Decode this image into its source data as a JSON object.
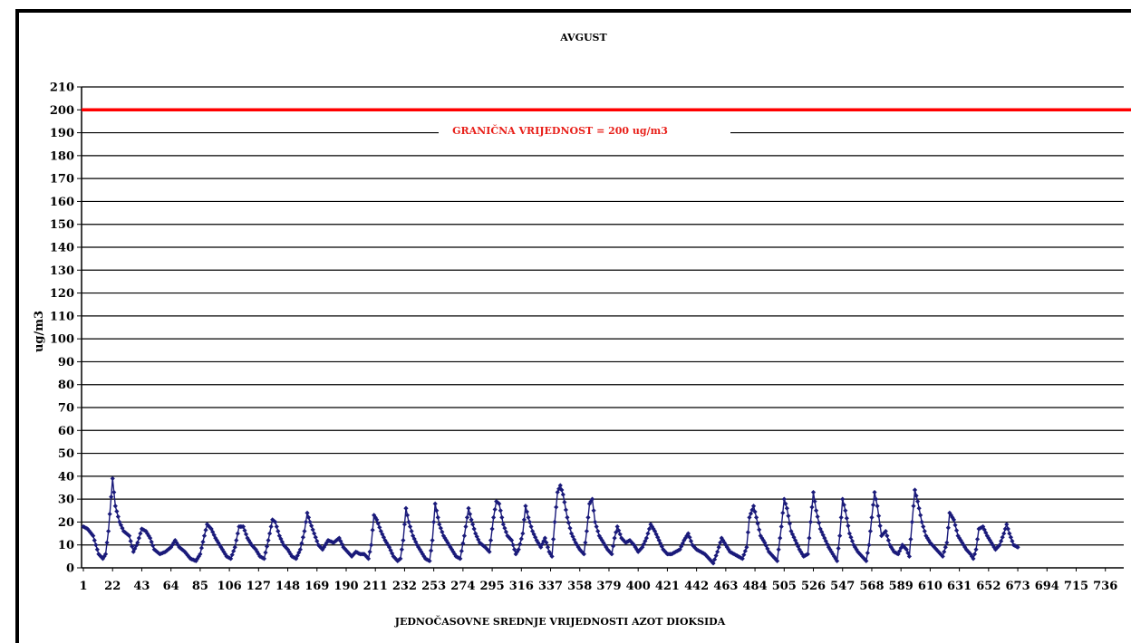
{
  "chart_data": {
    "type": "line",
    "title": "AVGUST",
    "xlabel": "JEDNOČASOVNE SREDNJE VRIJEDNOSTI AZOT DIOKSIDA",
    "ylabel": "ug/m3",
    "ylim": [
      0,
      210
    ],
    "y_ticks": [
      "0",
      "10",
      "20",
      "30",
      "40",
      "50",
      "60",
      "70",
      "80",
      "90",
      "100",
      "110",
      "120",
      "130",
      "140",
      "150",
      "160",
      "170",
      "180",
      "190",
      "200",
      "210"
    ],
    "x_ticks": [
      "1",
      "22",
      "43",
      "64",
      "85",
      "106",
      "127",
      "148",
      "169",
      "190",
      "211",
      "232",
      "253",
      "274",
      "295",
      "316",
      "337",
      "358",
      "379",
      "400",
      "421",
      "442",
      "463",
      "484",
      "505",
      "526",
      "547",
      "568",
      "589",
      "610",
      "631",
      "652",
      "673",
      "694",
      "715",
      "736"
    ],
    "xlim": [
      1,
      744
    ],
    "grid": true,
    "limit_line": {
      "value": 200,
      "label": "GRANIČNA VRIJEDNOST = 200 ug/m3",
      "color": "#ff0000"
    },
    "series": [
      {
        "name": "",
        "color": "#1a1a7a",
        "keypoints": [
          [
            1,
            18
          ],
          [
            4,
            17
          ],
          [
            8,
            14
          ],
          [
            12,
            6
          ],
          [
            15,
            4
          ],
          [
            17,
            6
          ],
          [
            19,
            16
          ],
          [
            21,
            31
          ],
          [
            22,
            39
          ],
          [
            24,
            27
          ],
          [
            27,
            20
          ],
          [
            30,
            16
          ],
          [
            34,
            14
          ],
          [
            37,
            7
          ],
          [
            40,
            11
          ],
          [
            43,
            17
          ],
          [
            46,
            16
          ],
          [
            49,
            13
          ],
          [
            52,
            8
          ],
          [
            56,
            6
          ],
          [
            60,
            7
          ],
          [
            64,
            9
          ],
          [
            67,
            12
          ],
          [
            70,
            9
          ],
          [
            74,
            7
          ],
          [
            78,
            4
          ],
          [
            82,
            3
          ],
          [
            85,
            6
          ],
          [
            88,
            14
          ],
          [
            90,
            19
          ],
          [
            93,
            17
          ],
          [
            96,
            13
          ],
          [
            100,
            9
          ],
          [
            104,
            5
          ],
          [
            107,
            4
          ],
          [
            110,
            9
          ],
          [
            113,
            18
          ],
          [
            116,
            18
          ],
          [
            119,
            13
          ],
          [
            122,
            10
          ],
          [
            125,
            8
          ],
          [
            128,
            5
          ],
          [
            131,
            4
          ],
          [
            134,
            12
          ],
          [
            137,
            21
          ],
          [
            139,
            20
          ],
          [
            142,
            14
          ],
          [
            145,
            10
          ],
          [
            148,
            8
          ],
          [
            151,
            5
          ],
          [
            154,
            4
          ],
          [
            157,
            8
          ],
          [
            160,
            16
          ],
          [
            162,
            24
          ],
          [
            164,
            20
          ],
          [
            167,
            15
          ],
          [
            170,
            10
          ],
          [
            173,
            8
          ],
          [
            177,
            12
          ],
          [
            181,
            11
          ],
          [
            185,
            13
          ],
          [
            188,
            9
          ],
          [
            191,
            7
          ],
          [
            194,
            5
          ],
          [
            197,
            7
          ],
          [
            200,
            6
          ],
          [
            203,
            6
          ],
          [
            206,
            4
          ],
          [
            208,
            10
          ],
          [
            210,
            23
          ],
          [
            212,
            21
          ],
          [
            215,
            16
          ],
          [
            218,
            12
          ],
          [
            221,
            9
          ],
          [
            224,
            5
          ],
          [
            227,
            3
          ],
          [
            229,
            4
          ],
          [
            231,
            12
          ],
          [
            233,
            26
          ],
          [
            235,
            20
          ],
          [
            238,
            14
          ],
          [
            241,
            10
          ],
          [
            244,
            7
          ],
          [
            247,
            4
          ],
          [
            250,
            3
          ],
          [
            252,
            12
          ],
          [
            254,
            28
          ],
          [
            257,
            19
          ],
          [
            260,
            14
          ],
          [
            263,
            11
          ],
          [
            266,
            8
          ],
          [
            269,
            5
          ],
          [
            272,
            4
          ],
          [
            275,
            14
          ],
          [
            278,
            26
          ],
          [
            280,
            21
          ],
          [
            283,
            15
          ],
          [
            286,
            11
          ],
          [
            290,
            9
          ],
          [
            293,
            7
          ],
          [
            296,
            22
          ],
          [
            298,
            29
          ],
          [
            300,
            28
          ],
          [
            303,
            19
          ],
          [
            306,
            14
          ],
          [
            309,
            12
          ],
          [
            312,
            6
          ],
          [
            314,
            8
          ],
          [
            317,
            15
          ],
          [
            319,
            27
          ],
          [
            321,
            22
          ],
          [
            324,
            16
          ],
          [
            327,
            12
          ],
          [
            330,
            9
          ],
          [
            333,
            13
          ],
          [
            336,
            7
          ],
          [
            338,
            5
          ],
          [
            340,
            20
          ],
          [
            342,
            33
          ],
          [
            344,
            36
          ],
          [
            346,
            32
          ],
          [
            349,
            22
          ],
          [
            352,
            15
          ],
          [
            355,
            11
          ],
          [
            358,
            8
          ],
          [
            361,
            6
          ],
          [
            363,
            16
          ],
          [
            365,
            28
          ],
          [
            367,
            30
          ],
          [
            369,
            20
          ],
          [
            372,
            14
          ],
          [
            375,
            11
          ],
          [
            378,
            8
          ],
          [
            381,
            6
          ],
          [
            383,
            13
          ],
          [
            385,
            18
          ],
          [
            388,
            13
          ],
          [
            391,
            11
          ],
          [
            394,
            12
          ],
          [
            397,
            10
          ],
          [
            400,
            7
          ],
          [
            403,
            9
          ],
          [
            406,
            13
          ],
          [
            409,
            19
          ],
          [
            412,
            16
          ],
          [
            415,
            12
          ],
          [
            418,
            8
          ],
          [
            421,
            6
          ],
          [
            424,
            6
          ],
          [
            427,
            7
          ],
          [
            430,
            8
          ],
          [
            433,
            12
          ],
          [
            436,
            15
          ],
          [
            439,
            10
          ],
          [
            442,
            8
          ],
          [
            445,
            7
          ],
          [
            448,
            6
          ],
          [
            451,
            4
          ],
          [
            454,
            2
          ],
          [
            457,
            7
          ],
          [
            460,
            13
          ],
          [
            463,
            10
          ],
          [
            466,
            7
          ],
          [
            469,
            6
          ],
          [
            472,
            5
          ],
          [
            475,
            4
          ],
          [
            478,
            9
          ],
          [
            480,
            22
          ],
          [
            483,
            27
          ],
          [
            485,
            22
          ],
          [
            488,
            14
          ],
          [
            491,
            11
          ],
          [
            494,
            7
          ],
          [
            497,
            5
          ],
          [
            500,
            3
          ],
          [
            503,
            18
          ],
          [
            505,
            30
          ],
          [
            507,
            26
          ],
          [
            510,
            16
          ],
          [
            513,
            12
          ],
          [
            516,
            8
          ],
          [
            519,
            5
          ],
          [
            522,
            6
          ],
          [
            524,
            20
          ],
          [
            526,
            33
          ],
          [
            528,
            25
          ],
          [
            531,
            17
          ],
          [
            534,
            13
          ],
          [
            537,
            9
          ],
          [
            540,
            6
          ],
          [
            543,
            3
          ],
          [
            545,
            14
          ],
          [
            547,
            30
          ],
          [
            549,
            25
          ],
          [
            552,
            15
          ],
          [
            555,
            10
          ],
          [
            558,
            7
          ],
          [
            561,
            5
          ],
          [
            564,
            3
          ],
          [
            566,
            10
          ],
          [
            568,
            22
          ],
          [
            570,
            33
          ],
          [
            572,
            27
          ],
          [
            575,
            14
          ],
          [
            578,
            16
          ],
          [
            581,
            10
          ],
          [
            584,
            7
          ],
          [
            587,
            6
          ],
          [
            590,
            10
          ],
          [
            593,
            8
          ],
          [
            595,
            5
          ],
          [
            597,
            20
          ],
          [
            599,
            34
          ],
          [
            601,
            29
          ],
          [
            604,
            20
          ],
          [
            607,
            14
          ],
          [
            610,
            11
          ],
          [
            613,
            9
          ],
          [
            616,
            7
          ],
          [
            619,
            5
          ],
          [
            622,
            11
          ],
          [
            624,
            24
          ],
          [
            627,
            21
          ],
          [
            630,
            14
          ],
          [
            633,
            11
          ],
          [
            636,
            8
          ],
          [
            639,
            6
          ],
          [
            641,
            4
          ],
          [
            643,
            8
          ],
          [
            645,
            17
          ],
          [
            648,
            18
          ],
          [
            651,
            14
          ],
          [
            654,
            11
          ],
          [
            657,
            8
          ],
          [
            660,
            10
          ],
          [
            663,
            15
          ],
          [
            665,
            19
          ],
          [
            667,
            15
          ],
          [
            670,
            10
          ],
          [
            673,
            9
          ]
        ]
      }
    ]
  }
}
